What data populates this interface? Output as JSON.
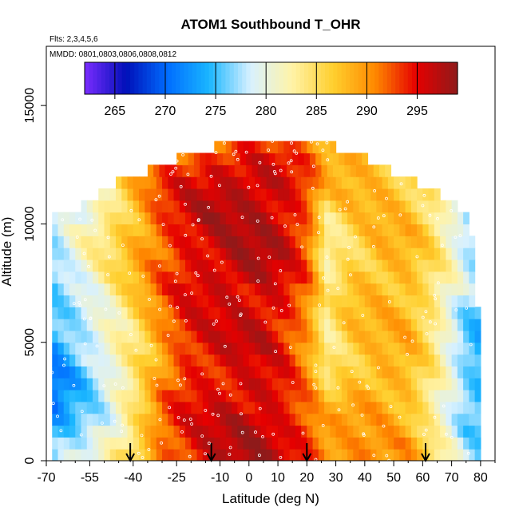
{
  "chart_data": {
    "type": "heatmap",
    "title": "ATOM1 Southbound T_OHR",
    "flights_note": "Flts: 2,3,4,5,6",
    "dates_note": "MMDD: 0801,0803,0806,0808,0812",
    "xlabel": "Latitude (deg N)",
    "ylabel": "Altitude (m)",
    "xlim": [
      -70,
      85
    ],
    "ylim": [
      0,
      17500
    ],
    "x_ticks": [
      -70,
      -55,
      -40,
      -25,
      -10,
      0,
      10,
      20,
      30,
      40,
      50,
      60,
      70,
      80
    ],
    "x_tick_labels": [
      "-70",
      "-55",
      "-40",
      "-25",
      "-10",
      "0",
      "10",
      "20",
      "30",
      "40",
      "50",
      "60",
      "70",
      "80"
    ],
    "y_ticks": [
      0,
      5000,
      10000,
      15000
    ],
    "y_tick_labels": [
      "0",
      "5000",
      "10000",
      "15000"
    ],
    "colorbar": {
      "min": 262,
      "max": 299,
      "ticks": [
        265,
        270,
        275,
        280,
        285,
        290,
        295
      ],
      "tick_labels": [
        "265",
        "270",
        "275",
        "280",
        "285",
        "290",
        "295"
      ],
      "colors": [
        "#7a2cff",
        "#0010b8",
        "#006dff",
        "#1ab6ff",
        "#d8f1ff",
        "#fff3a8",
        "#ffcf2e",
        "#ff8a00",
        "#e60000",
        "#8f1a1a"
      ]
    },
    "profile_arrows_lat": [
      -41,
      -13,
      20,
      61
    ],
    "rows_altitude": [
      0,
      500,
      1000,
      1500,
      2000,
      2500,
      3000,
      3500,
      4000,
      4500,
      5000,
      5500,
      6000,
      6500,
      7000,
      7500,
      8000,
      8500,
      9000,
      9500,
      10000,
      10500,
      11000,
      11500,
      12000,
      12500,
      13000
    ],
    "coverage_lat_ranges": [
      [
        -68,
        79
      ],
      [
        -68,
        79
      ],
      [
        -68,
        79
      ],
      [
        -68,
        79
      ],
      [
        -68,
        79
      ],
      [
        -68,
        79
      ],
      [
        -68,
        79
      ],
      [
        -68,
        79
      ],
      [
        -68,
        80
      ],
      [
        -68,
        80
      ],
      [
        -68,
        80
      ],
      [
        -68,
        80
      ],
      [
        -68,
        80
      ],
      [
        -68,
        78
      ],
      [
        -68,
        78
      ],
      [
        -68,
        78
      ],
      [
        -68,
        78
      ],
      [
        -68,
        77
      ],
      [
        -68,
        77
      ],
      [
        -68,
        76
      ],
      [
        -68,
        76
      ],
      [
        -58,
        71
      ],
      [
        -52,
        66
      ],
      [
        -46,
        58
      ],
      [
        -35,
        48
      ],
      [
        -25,
        40
      ],
      [
        -12,
        30
      ]
    ],
    "temperature_field": {
      "description": "approximate potential temperature (K) per altitude row and latitude",
      "lat_knots": [
        -68,
        -60,
        -50,
        -40,
        -30,
        -22,
        -12,
        -3,
        5,
        12,
        20,
        27,
        35,
        45,
        55,
        63,
        70,
        75,
        80
      ],
      "temp_rows": [
        [
          276,
          278,
          281,
          286,
          292,
          294,
          296,
          297,
          297,
          296,
          294,
          291,
          291,
          290,
          289,
          285,
          281,
          278,
          277
        ],
        [
          275,
          277,
          280,
          286,
          292,
          294,
          296,
          297,
          297,
          296,
          294,
          291,
          290,
          290,
          289,
          285,
          281,
          278,
          277
        ],
        [
          273,
          276,
          280,
          285,
          292,
          294,
          296,
          297,
          297,
          296,
          294,
          290,
          289,
          289,
          288,
          284,
          280,
          277,
          276
        ],
        [
          272,
          275,
          279,
          285,
          292,
          294,
          296,
          297,
          297,
          295,
          293,
          289,
          289,
          289,
          288,
          284,
          280,
          277,
          275
        ],
        [
          271,
          275,
          279,
          284,
          291,
          294,
          296,
          296,
          296,
          295,
          292,
          287,
          289,
          289,
          288,
          284,
          280,
          276,
          275
        ],
        [
          271,
          275,
          279,
          284,
          291,
          294,
          295,
          296,
          296,
          295,
          291,
          286,
          288,
          289,
          288,
          284,
          279,
          276,
          274
        ],
        [
          271,
          274,
          278,
          283,
          290,
          294,
          295,
          296,
          296,
          294,
          290,
          285,
          287,
          289,
          288,
          284,
          279,
          276,
          274
        ],
        [
          271,
          274,
          278,
          283,
          290,
          294,
          295,
          295,
          295,
          294,
          290,
          284,
          287,
          289,
          288,
          284,
          279,
          276,
          274
        ],
        [
          272,
          275,
          279,
          284,
          290,
          294,
          295,
          295,
          295,
          294,
          290,
          284,
          287,
          288,
          288,
          284,
          279,
          276,
          274
        ],
        [
          272,
          275,
          280,
          284,
          290,
          294,
          295,
          296,
          296,
          294,
          290,
          284,
          287,
          288,
          288,
          284,
          279,
          276,
          274
        ],
        [
          273,
          276,
          280,
          285,
          291,
          294,
          295,
          296,
          296,
          294,
          291,
          284,
          287,
          288,
          288,
          284,
          280,
          276,
          275
        ],
        [
          274,
          277,
          281,
          285,
          291,
          294,
          295,
          296,
          296,
          294,
          291,
          284,
          287,
          288,
          288,
          285,
          280,
          277,
          275
        ],
        [
          275,
          277,
          281,
          286,
          291,
          294,
          295,
          296,
          296,
          295,
          291,
          283,
          287,
          288,
          288,
          285,
          280,
          277,
          275
        ],
        [
          276,
          278,
          282,
          286,
          291,
          294,
          296,
          296,
          296,
          295,
          291,
          283,
          287,
          288,
          288,
          285,
          281,
          277,
          276
        ],
        [
          276,
          279,
          282,
          287,
          292,
          295,
          296,
          296,
          296,
          295,
          291,
          283,
          287,
          288,
          288,
          285,
          281,
          278,
          276
        ],
        [
          277,
          279,
          283,
          287,
          292,
          295,
          296,
          297,
          297,
          295,
          292,
          283,
          287,
          288,
          288,
          285,
          281,
          278,
          276
        ],
        [
          277,
          280,
          283,
          288,
          292,
          295,
          296,
          297,
          297,
          295,
          292,
          283,
          286,
          288,
          288,
          285,
          281,
          278,
          276
        ],
        [
          277,
          280,
          283,
          288,
          292,
          295,
          296,
          297,
          297,
          296,
          292,
          283,
          286,
          288,
          288,
          285,
          281,
          278,
          276
        ],
        [
          277,
          280,
          284,
          288,
          293,
          295,
          296,
          297,
          297,
          296,
          293,
          283,
          286,
          288,
          288,
          285,
          281,
          278,
          276
        ],
        [
          277,
          280,
          284,
          288,
          293,
          295,
          296,
          297,
          297,
          296,
          293,
          284,
          286,
          288,
          288,
          285,
          281,
          278,
          276
        ],
        [
          276,
          279,
          283,
          288,
          293,
          295,
          297,
          297,
          297,
          296,
          293,
          284,
          286,
          288,
          287,
          285,
          281,
          278,
          276
        ],
        [
          276,
          279,
          283,
          288,
          293,
          295,
          297,
          297,
          297,
          296,
          293,
          285,
          287,
          288,
          287,
          285,
          281,
          278,
          276
        ],
        [
          276,
          279,
          283,
          288,
          293,
          295,
          297,
          297,
          297,
          296,
          293,
          286,
          288,
          288,
          287,
          285,
          281,
          278,
          276
        ],
        [
          276,
          279,
          283,
          288,
          293,
          295,
          296,
          297,
          297,
          296,
          293,
          287,
          288,
          288,
          287,
          285,
          281,
          278,
          276
        ],
        [
          276,
          279,
          283,
          288,
          292,
          294,
          296,
          296,
          296,
          295,
          292,
          288,
          289,
          288,
          287,
          285,
          281,
          278,
          276
        ],
        [
          276,
          279,
          283,
          288,
          291,
          293,
          294,
          295,
          295,
          294,
          292,
          289,
          289,
          288,
          287,
          285,
          281,
          278,
          276
        ],
        [
          276,
          279,
          283,
          287,
          290,
          291,
          292,
          293,
          293,
          292,
          291,
          289,
          289,
          288,
          287,
          285,
          281,
          278,
          276
        ]
      ]
    }
  }
}
